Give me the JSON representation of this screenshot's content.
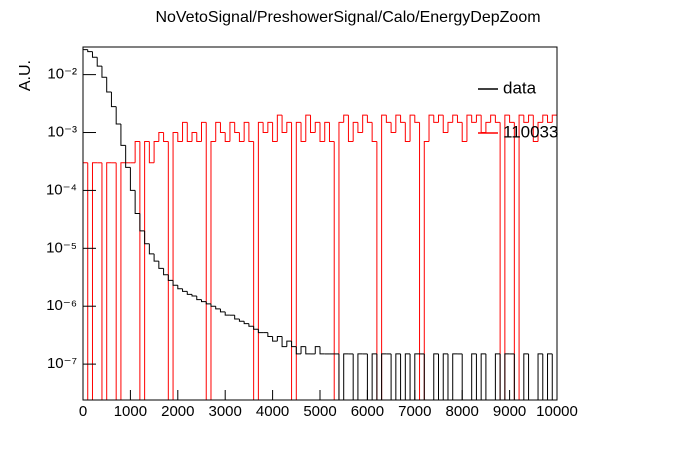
{
  "chart_data": {
    "type": "histogram",
    "title": "NoVetoSignal/PreshowerSignal/Calo/EnergyDepZoom",
    "ylabel": "A.U.",
    "log_y": true,
    "legend": "upper right",
    "bins": [
      0,
      100,
      200,
      300,
      400,
      500,
      600,
      700,
      800,
      900,
      1000,
      1100,
      1200,
      1300,
      1400,
      1500,
      1600,
      1700,
      1800,
      1900,
      2000,
      2100,
      2200,
      2300,
      2400,
      2500,
      2600,
      2700,
      2800,
      2900,
      3000,
      3100,
      3200,
      3300,
      3400,
      3500,
      3600,
      3700,
      3800,
      3900,
      4000,
      4100,
      4200,
      4300,
      4400,
      4500,
      4600,
      4700,
      4800,
      4900,
      5000,
      5100,
      5200,
      5300,
      5400,
      5500,
      5600,
      5700,
      5800,
      5900,
      6000,
      6100,
      6200,
      6300,
      6400,
      6500,
      6600,
      6700,
      6800,
      6900,
      7000,
      7100,
      7200,
      7300,
      7400,
      7500,
      7600,
      7700,
      7800,
      7900,
      8000,
      8100,
      8200,
      8300,
      8400,
      8500,
      8600,
      8700,
      8800,
      8900,
      9000,
      9100,
      9200,
      9300,
      9400,
      9500,
      9600,
      9700,
      9800,
      9900,
      10000
    ],
    "series": [
      {
        "name": "110033",
        "color": "#ff0000",
        "values": [
          0.0003,
          0,
          0.0003,
          0.0003,
          0,
          0.0003,
          0.0003,
          0,
          0.0003,
          0.0003,
          0.0003,
          0.0007,
          0,
          0.0007,
          0.0003,
          0.0007,
          0.001,
          0.0007,
          0,
          0.001,
          0.0007,
          0.0015,
          0.0007,
          0.001,
          0.0007,
          0.0015,
          0,
          0.0007,
          0.0015,
          0.001,
          0.0007,
          0.0015,
          0.001,
          0.0007,
          0.0015,
          0.0007,
          0,
          0.0015,
          0.001,
          0.0015,
          0.0007,
          0.002,
          0.001,
          0.0015,
          0,
          0.0015,
          0.0007,
          0.002,
          0.001,
          0.0015,
          0.0007,
          0.0015,
          0.0007,
          0,
          0.0015,
          0.002,
          0.0007,
          0.0015,
          0.001,
          0.002,
          0.0015,
          0.0007,
          0,
          0.002,
          0.0015,
          0.001,
          0.002,
          0.0015,
          0.0007,
          0.002,
          0.0015,
          0,
          0.0007,
          0.002,
          0.0015,
          0.002,
          0.001,
          0.0015,
          0.002,
          0.0015,
          0.0007,
          0.002,
          0.0015,
          0.002,
          0.001,
          0.0015,
          0.002,
          0.0015,
          0,
          0.002,
          0.0015,
          0,
          0.002,
          0.0015,
          0.002,
          0.0007,
          0.0015,
          0.002,
          0.0015,
          0.002
        ]
      },
      {
        "name": "data",
        "color": "#000000",
        "values": [
          0.027,
          0.025,
          0.02,
          0.014,
          0.009,
          0.005,
          0.0028,
          0.0014,
          0.0006,
          0.00025,
          0.0001,
          4e-05,
          2e-05,
          1.2e-05,
          8e-06,
          6e-06,
          4.5e-06,
          3.5e-06,
          2.8e-06,
          2.3e-06,
          2e-06,
          1.8e-06,
          1.6e-06,
          1.5e-06,
          1.3e-06,
          1.2e-06,
          1.1e-06,
          1e-06,
          9e-07,
          8e-07,
          7e-07,
          7e-07,
          6e-07,
          5.5e-07,
          5e-07,
          4.5e-07,
          4e-07,
          3.5e-07,
          3.5e-07,
          3e-07,
          2.5e-07,
          3e-07,
          2e-07,
          2.5e-07,
          2e-07,
          1.5e-07,
          2e-07,
          1.5e-07,
          1.5e-07,
          2e-07,
          1.5e-07,
          1.5e-07,
          1.5e-07,
          1.5e-07,
          0,
          1.5e-07,
          1.5e-07,
          0,
          1.5e-07,
          1.5e-07,
          0,
          1.5e-07,
          0,
          1.5e-07,
          1.5e-07,
          0,
          1.5e-07,
          0,
          1.5e-07,
          0,
          1.5e-07,
          1.5e-07,
          0,
          0,
          1.5e-07,
          0,
          1.5e-07,
          0,
          1.5e-07,
          1.5e-07,
          0,
          0,
          1.5e-07,
          0,
          1.5e-07,
          0,
          0,
          1.5e-07,
          0,
          1.5e-07,
          1.5e-07,
          0,
          0,
          1.5e-07,
          0,
          0,
          1.5e-07,
          0,
          1.5e-07,
          0
        ]
      }
    ],
    "xlim": [
      0,
      10000
    ],
    "xticks": [
      0,
      1000,
      2000,
      3000,
      4000,
      5000,
      6000,
      7000,
      8000,
      9000,
      10000
    ],
    "ylim": [
      2.4e-08,
      0.03
    ],
    "yticks": [
      {
        "value": 1e-07,
        "label": "10⁻⁷"
      },
      {
        "value": 1e-06,
        "label": "10⁻⁶"
      },
      {
        "value": 1e-05,
        "label": "10⁻⁵"
      },
      {
        "value": 0.0001,
        "label": "10⁻⁴"
      },
      {
        "value": 0.001,
        "label": "10⁻³"
      },
      {
        "value": 0.01,
        "label": "10⁻²"
      }
    ]
  }
}
